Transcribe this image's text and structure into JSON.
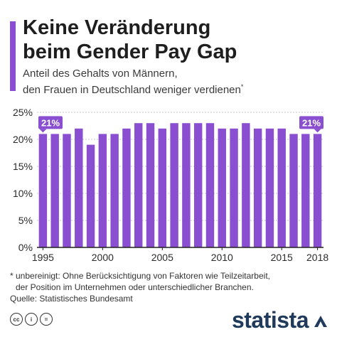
{
  "header": {
    "title_line1": "Keine Veränderung",
    "title_line2": "beim Gender Pay Gap",
    "subtitle_line1": "Anteil des Gehalts von Männern,",
    "subtitle_line2": "den Frauen in Deutschland weniger verdienen",
    "subtitle_mark": "*"
  },
  "colors": {
    "accent": "#8a4fd0",
    "bar": "#8a4fd0",
    "grid": "#c8c8c8",
    "text": "#2b2b2b",
    "logo": "#1f3a5a"
  },
  "chart_data": {
    "type": "bar",
    "x": [
      1995,
      1996,
      1997,
      1998,
      1999,
      2000,
      2001,
      2002,
      2003,
      2004,
      2005,
      2006,
      2007,
      2008,
      2009,
      2010,
      2011,
      2012,
      2013,
      2014,
      2015,
      2016,
      2017,
      2018
    ],
    "values": [
      21,
      21,
      21,
      22,
      19,
      21,
      21,
      22,
      23,
      23,
      22,
      23,
      23,
      23,
      23,
      22,
      22,
      23,
      22,
      22,
      22,
      21,
      21,
      21
    ],
    "ylim": [
      0,
      25
    ],
    "yticks": [
      0,
      5,
      10,
      15,
      20,
      25
    ],
    "ytick_labels": [
      "0%",
      "5%",
      "10%",
      "15%",
      "20%",
      "25%"
    ],
    "xtick_labels": [
      "1995",
      "2000",
      "2005",
      "2010",
      "2015",
      "2018"
    ],
    "xticks": [
      1995,
      2000,
      2005,
      2010,
      2015,
      2018
    ],
    "grid": true,
    "annotations": [
      {
        "x": 1995,
        "label": "21%"
      },
      {
        "x": 2018,
        "label": "21%"
      }
    ]
  },
  "footnote": {
    "line1": "* unbereinigt: Ohne Berücksichtigung von Faktoren wie Teilzeitarbeit,",
    "line2": "der Position im Unternehmen oder unterschiedlicher Branchen.",
    "source": "Quelle: Statistisches Bundesamt"
  },
  "footer": {
    "cc_icons": [
      "cc-icon",
      "person-icon",
      "equals-icon"
    ],
    "cc_labels": [
      "cc",
      "i",
      "="
    ],
    "logo_text": "statista",
    "logo_icon": "statista-mark-icon"
  }
}
